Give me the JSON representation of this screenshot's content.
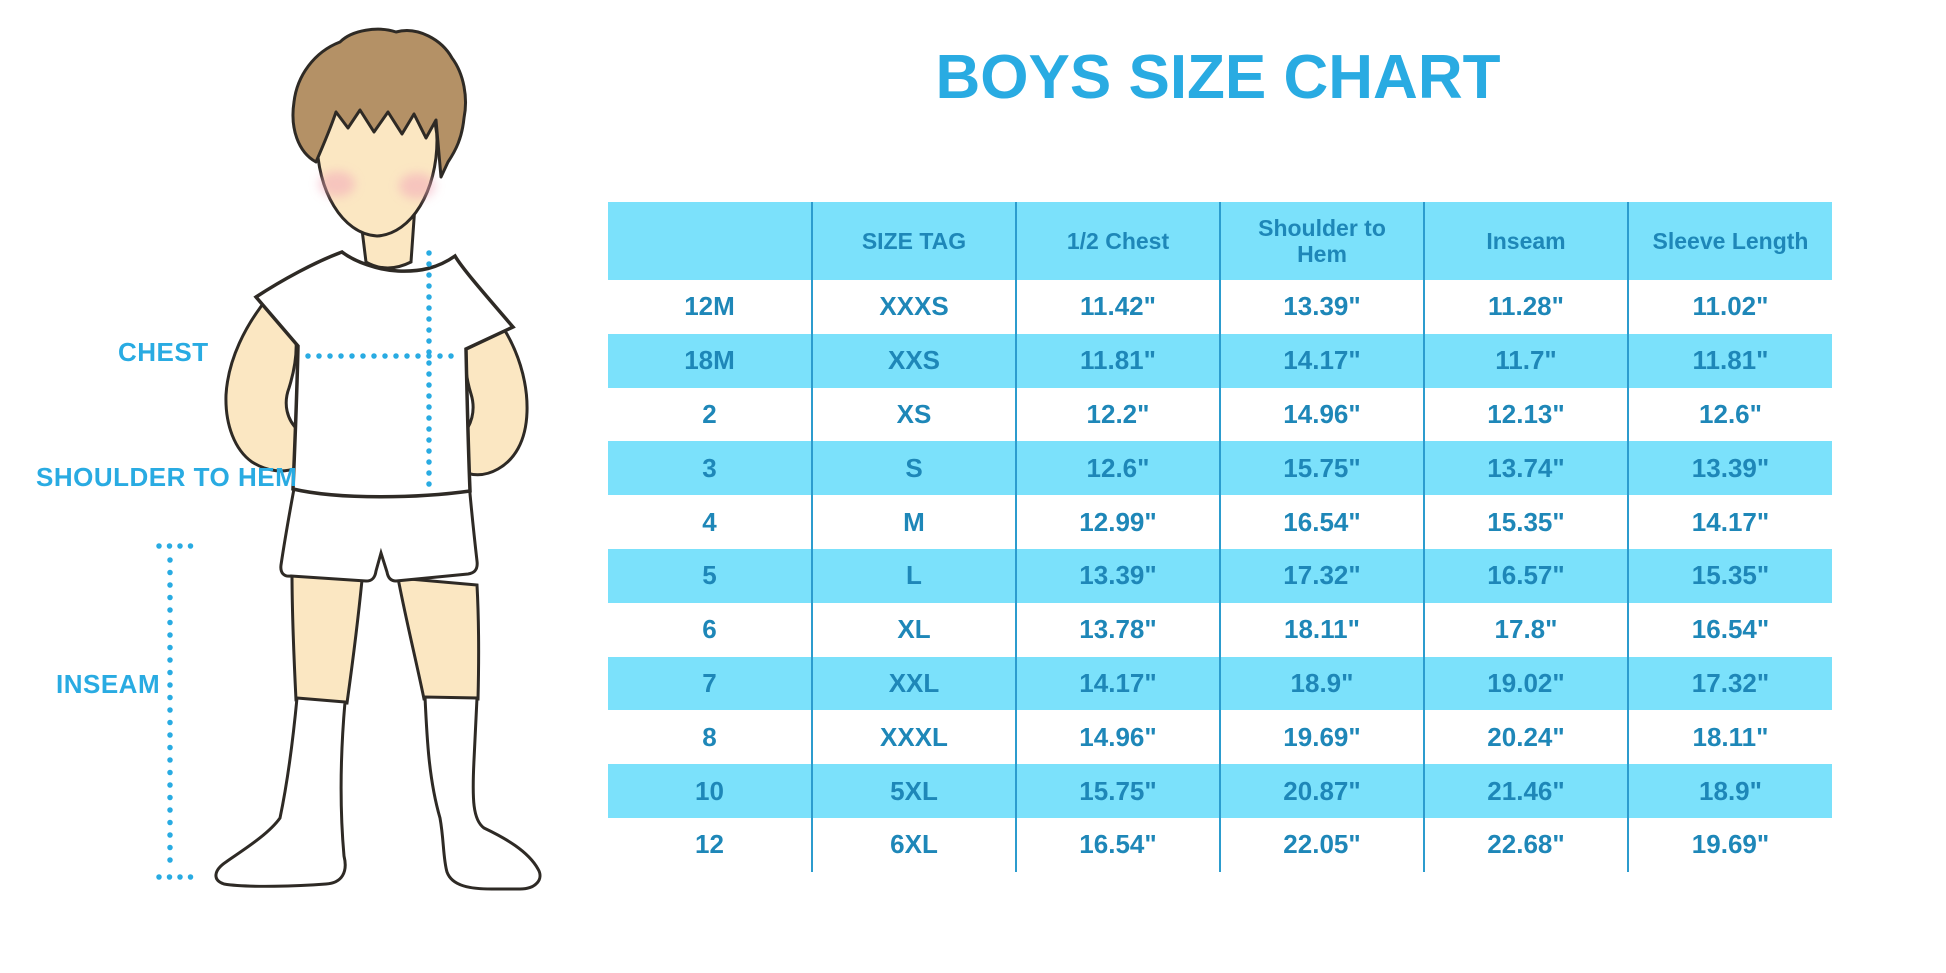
{
  "title": "BOYS SIZE CHART",
  "colors": {
    "accent_blue": "#29ABE2",
    "band_cyan": "#7BE1FB",
    "grid_blue": "#2C9CCE",
    "table_text_blue": "#1E87B8"
  },
  "figure": {
    "labels": {
      "chest": "CHEST",
      "shoulder_to_hem": "SHOULDER TO HEM",
      "inseam": "INSEAM"
    }
  },
  "chart_data": {
    "type": "table",
    "title": "BOYS SIZE CHART",
    "columns": [
      "",
      "SIZE TAG",
      "1/2 Chest",
      "Shoulder to Hem",
      "Inseam",
      "Sleeve Length"
    ],
    "rows": [
      [
        "12M",
        "XXXS",
        "11.42\"",
        "13.39\"",
        "11.28\"",
        "11.02\""
      ],
      [
        "18M",
        "XXS",
        "11.81\"",
        "14.17\"",
        "11.7\"",
        "11.81\""
      ],
      [
        "2",
        "XS",
        "12.2\"",
        "14.96\"",
        "12.13\"",
        "12.6\""
      ],
      [
        "3",
        "S",
        "12.6\"",
        "15.75\"",
        "13.74\"",
        "13.39\""
      ],
      [
        "4",
        "M",
        "12.99\"",
        "16.54\"",
        "15.35\"",
        "14.17\""
      ],
      [
        "5",
        "L",
        "13.39\"",
        "17.32\"",
        "16.57\"",
        "15.35\""
      ],
      [
        "6",
        "XL",
        "13.78\"",
        "18.11\"",
        "17.8\"",
        "16.54\""
      ],
      [
        "7",
        "XXL",
        "14.17\"",
        "18.9\"",
        "19.02\"",
        "17.32\""
      ],
      [
        "8",
        "XXXL",
        "14.96\"",
        "19.69\"",
        "20.24\"",
        "18.11\""
      ],
      [
        "10",
        "5XL",
        "15.75\"",
        "20.87\"",
        "21.46\"",
        "18.9\""
      ],
      [
        "12",
        "6XL",
        "16.54\"",
        "22.05\"",
        "22.68\"",
        "19.69\""
      ]
    ]
  }
}
